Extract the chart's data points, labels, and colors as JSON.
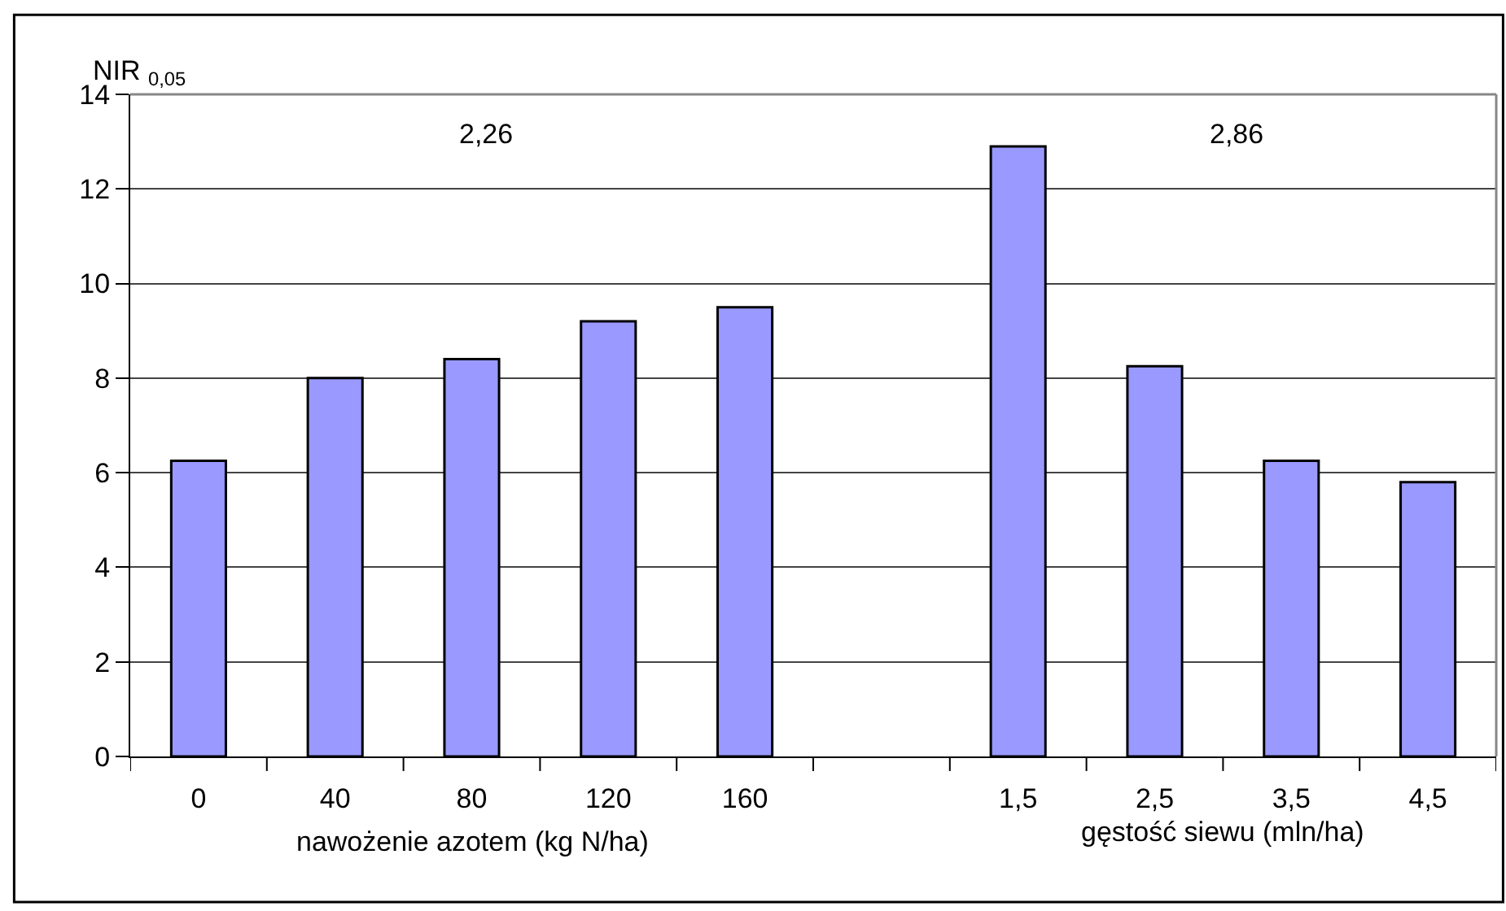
{
  "chart_data": {
    "type": "bar",
    "ylabel": "NIR $_{0,05}$",
    "xlabel": "nawożenie azotem (kg N/ha)",
    "categories": [
      "0",
      "40",
      "80",
      "120",
      "160",
      null,
      "1,5",
      "2,5",
      "3,5",
      "4,5"
    ],
    "values": [
      6.25,
      8.0,
      8.4,
      9.2,
      9.5,
      null,
      12.9,
      8.25,
      6.25,
      5.8
    ],
    "color": "#9999ff",
    "ylim": [
      0,
      14
    ],
    "yticks": [
      0,
      2,
      4,
      6,
      8,
      10,
      12,
      14
    ],
    "grid": "y",
    "legend": false,
    "annotations": [
      "2,26",
      "2,86",
      "gęstość siewu (mln/ha)"
    ]
  }
}
